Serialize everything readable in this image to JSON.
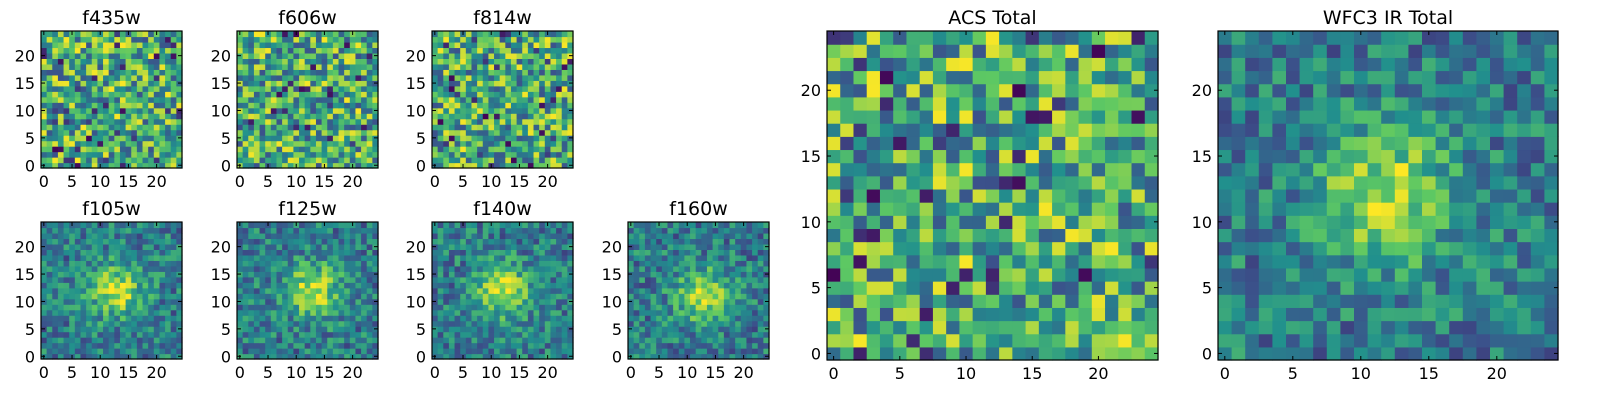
{
  "figure": {
    "colormap": [
      "#440154",
      "#3b528b",
      "#21908d",
      "#5dc863",
      "#fde725"
    ]
  },
  "chart_data": [
    {
      "type": "heatmap",
      "title": "f435w",
      "grid_size": 25,
      "xticks": [
        "0",
        "5",
        "10",
        "15",
        "20"
      ],
      "yticks": [
        "0",
        "5",
        "10",
        "15",
        "20"
      ],
      "pattern": "noise",
      "center": [
        12,
        12
      ]
    },
    {
      "type": "heatmap",
      "title": "f606w",
      "grid_size": 25,
      "xticks": [
        "0",
        "5",
        "10",
        "15",
        "20"
      ],
      "yticks": [
        "0",
        "5",
        "10",
        "15",
        "20"
      ],
      "pattern": "noise",
      "center": [
        12,
        12
      ]
    },
    {
      "type": "heatmap",
      "title": "f814w",
      "grid_size": 25,
      "xticks": [
        "0",
        "5",
        "10",
        "15",
        "20"
      ],
      "yticks": [
        "0",
        "5",
        "10",
        "15",
        "20"
      ],
      "pattern": "noise",
      "center": [
        12,
        12
      ]
    },
    {
      "type": "heatmap",
      "title": "f105w",
      "grid_size": 25,
      "xticks": [
        "0",
        "5",
        "10",
        "15",
        "20"
      ],
      "yticks": [
        "0",
        "5",
        "10",
        "15",
        "20"
      ],
      "pattern": "source",
      "center": [
        13,
        12
      ]
    },
    {
      "type": "heatmap",
      "title": "f125w",
      "grid_size": 25,
      "xticks": [
        "0",
        "5",
        "10",
        "15",
        "20"
      ],
      "yticks": [
        "0",
        "5",
        "10",
        "15",
        "20"
      ],
      "pattern": "source",
      "center": [
        13,
        12
      ]
    },
    {
      "type": "heatmap",
      "title": "f140w",
      "grid_size": 25,
      "xticks": [
        "0",
        "5",
        "10",
        "15",
        "20"
      ],
      "yticks": [
        "0",
        "5",
        "10",
        "15",
        "20"
      ],
      "pattern": "source",
      "center": [
        12,
        12
      ]
    },
    {
      "type": "heatmap",
      "title": "f160w",
      "grid_size": 25,
      "xticks": [
        "0",
        "5",
        "10",
        "15",
        "20"
      ],
      "yticks": [
        "0",
        "5",
        "10",
        "15",
        "20"
      ],
      "pattern": "source",
      "center": [
        13,
        11
      ]
    },
    {
      "type": "heatmap",
      "title": "ACS Total",
      "grid_size": 25,
      "xticks": [
        "0",
        "5",
        "10",
        "15",
        "20"
      ],
      "yticks": [
        "0",
        "5",
        "10",
        "15",
        "20"
      ],
      "pattern": "noise",
      "center": [
        12,
        12
      ]
    },
    {
      "type": "heatmap",
      "title": "WFC3 IR Total",
      "grid_size": 25,
      "xticks": [
        "0",
        "5",
        "10",
        "15",
        "20"
      ],
      "yticks": [
        "0",
        "5",
        "10",
        "15",
        "20"
      ],
      "pattern": "source",
      "center": [
        12,
        12
      ]
    }
  ]
}
